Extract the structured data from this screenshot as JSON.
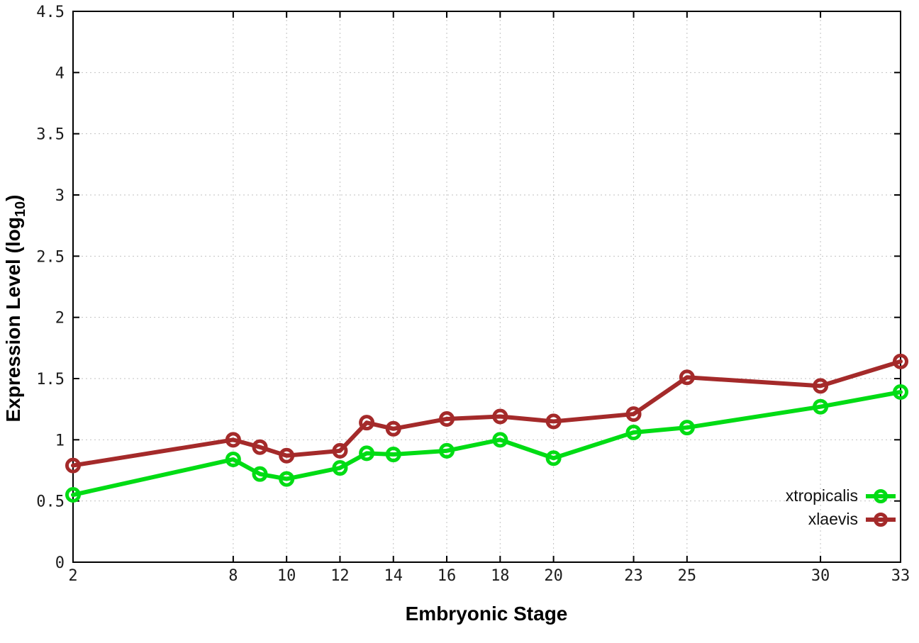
{
  "chart_data": {
    "type": "line",
    "xlabel": "Embryonic Stage",
    "ylabel": "Expression Level (log10)",
    "ylabel_parts": {
      "main": "Expression Level (log",
      "sub": "10",
      "close": ")"
    },
    "xlim": [
      2,
      33
    ],
    "ylim": [
      0,
      4.5
    ],
    "grid": true,
    "legend_position": "inside-bottom-right",
    "x_ticks": [
      {
        "value": 2,
        "label": "2"
      },
      {
        "value": 8,
        "label": "8"
      },
      {
        "value": 10,
        "label": "10"
      },
      {
        "value": 12,
        "label": "12"
      },
      {
        "value": 14,
        "label": "14"
      },
      {
        "value": 16,
        "label": "16"
      },
      {
        "value": 18,
        "label": "18"
      },
      {
        "value": 20,
        "label": "20"
      },
      {
        "value": 23,
        "label": "23"
      },
      {
        "value": 25,
        "label": "25"
      },
      {
        "value": 30,
        "label": "30"
      },
      {
        "value": 33,
        "label": "33"
      }
    ],
    "y_ticks": [
      {
        "value": 0,
        "label": "0"
      },
      {
        "value": 0.5,
        "label": "0.5"
      },
      {
        "value": 1,
        "label": "1"
      },
      {
        "value": 1.5,
        "label": "1.5"
      },
      {
        "value": 2,
        "label": "2"
      },
      {
        "value": 2.5,
        "label": "2.5"
      },
      {
        "value": 3,
        "label": "3"
      },
      {
        "value": 3.5,
        "label": "3.5"
      },
      {
        "value": 4,
        "label": "4"
      },
      {
        "value": 4.5,
        "label": "4.5"
      }
    ],
    "x": [
      2,
      8,
      9,
      10,
      12,
      13,
      14,
      16,
      18,
      20,
      23,
      25,
      30,
      33
    ],
    "series": [
      {
        "name": "xtropicalis",
        "color": "#00dc14",
        "marker": "open-circle",
        "values": [
          0.55,
          0.84,
          0.72,
          0.68,
          0.77,
          0.89,
          0.88,
          0.91,
          1.0,
          0.85,
          1.06,
          1.1,
          1.27,
          1.39
        ]
      },
      {
        "name": "xlaevis",
        "color": "#a42a2a",
        "marker": "open-circle",
        "values": [
          0.79,
          1.0,
          0.94,
          0.87,
          0.91,
          1.14,
          1.09,
          1.17,
          1.19,
          1.15,
          1.21,
          1.51,
          1.44,
          1.64
        ]
      }
    ]
  }
}
